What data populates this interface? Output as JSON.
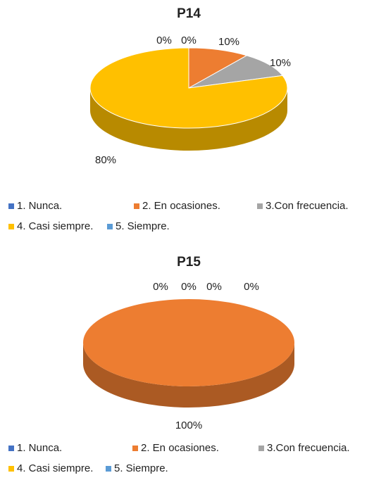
{
  "chart_data": [
    {
      "type": "pie",
      "title": "P14",
      "categories": [
        "1. Nunca.",
        "2. En ocasiones.",
        "3.Con frecuencia.",
        "4. Casi siempre.",
        "5. Siempre."
      ],
      "values": [
        0,
        10,
        10,
        80,
        0
      ],
      "value_labels": [
        "0%",
        "10%",
        "10%",
        "80%",
        "0%"
      ],
      "colors": [
        "#4472c4",
        "#ed7d31",
        "#a5a5a5",
        "#ffc000",
        "#5b9bd5"
      ],
      "legend": "bottom"
    },
    {
      "type": "pie",
      "title": "P15",
      "categories": [
        "1. Nunca.",
        "2. En ocasiones.",
        "3.Con frecuencia.",
        "4. Casi siempre.",
        "5. Siempre."
      ],
      "values": [
        0,
        100,
        0,
        0,
        0
      ],
      "value_labels": [
        "0%",
        "100%",
        "0%",
        "0%",
        "0%"
      ],
      "colors": [
        "#4472c4",
        "#ed7d31",
        "#a5a5a5",
        "#ffc000",
        "#5b9bd5"
      ],
      "legend": "bottom"
    }
  ]
}
